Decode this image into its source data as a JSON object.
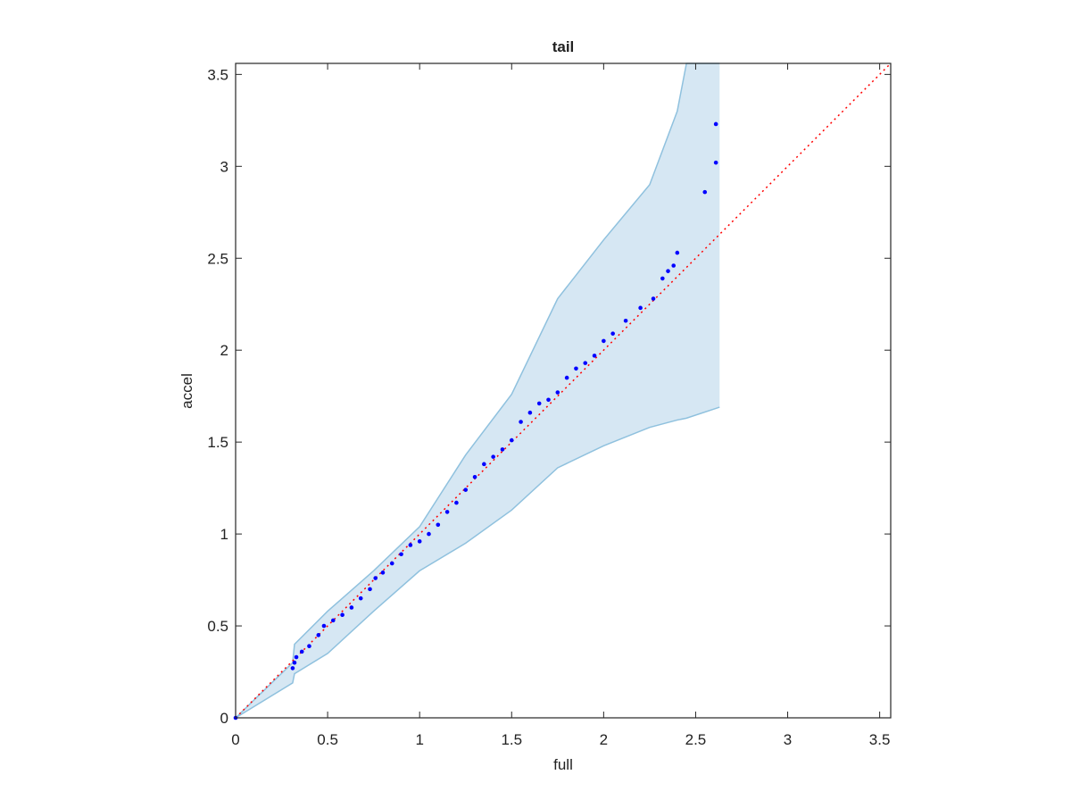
{
  "chart_data": {
    "type": "qq",
    "title": "tail",
    "xlabel": "full",
    "ylabel": "accel",
    "xlim": [
      0,
      3.56
    ],
    "ylim": [
      0,
      3.56
    ],
    "xticks": [
      0,
      0.5,
      1,
      1.5,
      2,
      2.5,
      3,
      3.5
    ],
    "yticks": [
      0,
      0.5,
      1,
      1.5,
      2,
      2.5,
      3,
      3.5
    ],
    "band": {
      "fill_color": "#d6e7f3",
      "edge_color": "#8fc1de",
      "x": [
        0,
        0.31,
        0.32,
        0.5,
        0.75,
        1.0,
        1.25,
        1.5,
        1.75,
        2.0,
        2.25,
        2.4,
        2.45,
        2.63
      ],
      "upper": [
        0,
        0.3,
        0.4,
        0.58,
        0.8,
        1.04,
        1.43,
        1.76,
        2.28,
        2.6,
        2.9,
        3.3,
        3.56,
        3.56
      ],
      "lower": [
        0,
        0.19,
        0.24,
        0.35,
        0.58,
        0.8,
        0.95,
        1.13,
        1.36,
        1.48,
        1.58,
        1.62,
        1.63,
        1.69
      ]
    },
    "points": {
      "color": "#0000ff",
      "x": [
        0,
        0.31,
        0.32,
        0.33,
        0.36,
        0.4,
        0.45,
        0.48,
        0.53,
        0.58,
        0.63,
        0.68,
        0.73,
        0.76,
        0.8,
        0.85,
        0.9,
        0.95,
        1.0,
        1.05,
        1.1,
        1.15,
        1.2,
        1.25,
        1.3,
        1.35,
        1.4,
        1.45,
        1.5,
        1.55,
        1.6,
        1.65,
        1.7,
        1.75,
        1.8,
        1.85,
        1.9,
        1.95,
        2.0,
        2.05,
        2.12,
        2.2,
        2.27,
        2.32,
        2.35,
        2.38,
        2.4,
        2.55,
        2.61,
        2.61
      ],
      "y": [
        0,
        0.27,
        0.3,
        0.33,
        0.36,
        0.39,
        0.45,
        0.5,
        0.53,
        0.56,
        0.6,
        0.65,
        0.7,
        0.76,
        0.79,
        0.84,
        0.89,
        0.94,
        0.96,
        1.0,
        1.05,
        1.12,
        1.17,
        1.24,
        1.31,
        1.38,
        1.42,
        1.46,
        1.51,
        1.61,
        1.66,
        1.71,
        1.73,
        1.77,
        1.85,
        1.9,
        1.93,
        1.97,
        2.05,
        2.09,
        2.16,
        2.23,
        2.28,
        2.39,
        2.43,
        2.46,
        2.53,
        2.86,
        3.02,
        3.23
      ]
    },
    "reference": {
      "color": "#ff0000",
      "x": [
        0,
        3.56
      ],
      "y": [
        0,
        3.56
      ]
    }
  }
}
